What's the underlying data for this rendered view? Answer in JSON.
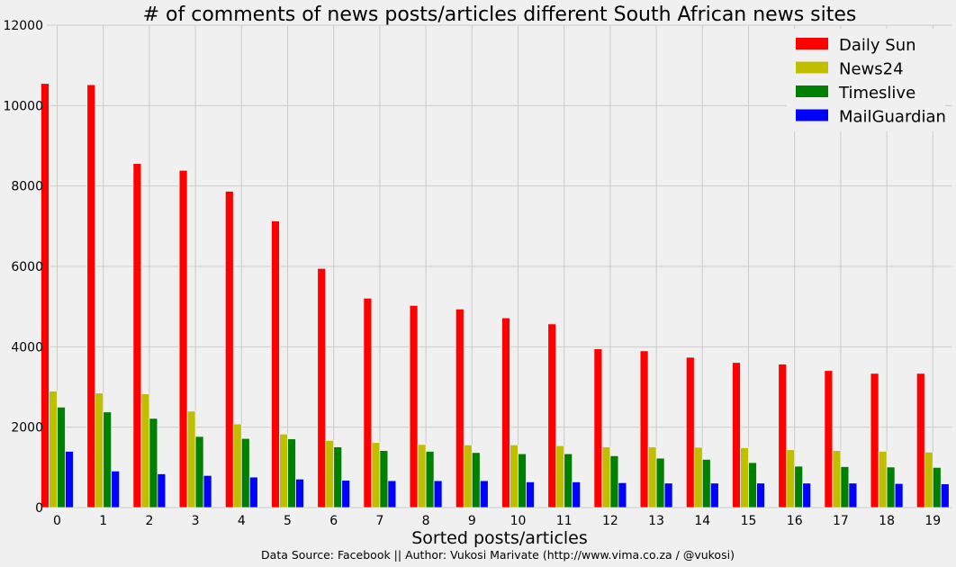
{
  "chart_data": {
    "type": "bar",
    "title": "# of comments of news posts/articles different South African news sites",
    "xlabel": "Sorted posts/articles",
    "ylabel": "",
    "ylim": [
      0,
      12000
    ],
    "yticks": [
      0,
      2000,
      4000,
      6000,
      8000,
      10000,
      12000
    ],
    "grid": true,
    "legend_position": "top-right",
    "categories": [
      "0",
      "1",
      "2",
      "3",
      "4",
      "5",
      "6",
      "7",
      "8",
      "9",
      "10",
      "11",
      "12",
      "13",
      "14",
      "15",
      "16",
      "17",
      "18",
      "19"
    ],
    "series": [
      {
        "name": "Daily Sun",
        "color": "#ff0000",
        "values": [
          10550,
          10520,
          8560,
          8390,
          7870,
          7130,
          5950,
          5210,
          5030,
          4940,
          4720,
          4570,
          3950,
          3900,
          3740,
          3610,
          3570,
          3410,
          3340,
          3340
        ]
      },
      {
        "name": "News24",
        "color": "#bfbf00",
        "values": [
          2900,
          2850,
          2830,
          2400,
          2080,
          1830,
          1670,
          1620,
          1570,
          1560,
          1560,
          1540,
          1510,
          1510,
          1500,
          1490,
          1440,
          1420,
          1400,
          1380
        ]
      },
      {
        "name": "Timeslive",
        "color": "#008000",
        "values": [
          2500,
          2380,
          2220,
          1770,
          1720,
          1710,
          1510,
          1420,
          1400,
          1370,
          1340,
          1340,
          1290,
          1230,
          1200,
          1120,
          1030,
          1020,
          1010,
          1000
        ]
      },
      {
        "name": "MailGuardian",
        "color": "#0000ff",
        "values": [
          1400,
          910,
          840,
          800,
          760,
          710,
          680,
          670,
          670,
          670,
          640,
          640,
          620,
          610,
          610,
          610,
          610,
          610,
          600,
          590
        ]
      }
    ],
    "source_note": "Data Source: Facebook || Author: Vukosi Marivate (http://www.vima.co.za / @vukosi)"
  }
}
